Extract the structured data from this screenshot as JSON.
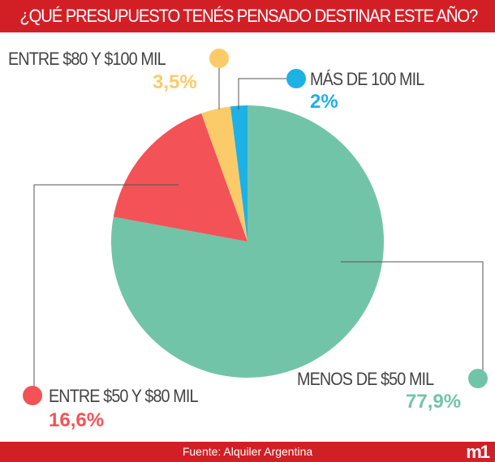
{
  "header": {
    "title": "¿QUÉ PRESUPUESTO TENÉS PENSADO DESTINAR ESTE AÑO?"
  },
  "footer": {
    "source": "Fuente: Alquiler Argentina",
    "logo": "m1"
  },
  "chart_data": {
    "type": "pie",
    "title": "¿QUÉ PRESUPUESTO TENÉS PENSADO DESTINAR ESTE AÑO?",
    "start": "12 o'clock, clockwise",
    "slices": [
      {
        "label": "MENOS DE $50 MIL",
        "value": 77.9,
        "display": "77,9%",
        "color": "#72c4a8"
      },
      {
        "label": "ENTRE $50 Y $80 MIL",
        "value": 16.6,
        "display": "16,6%",
        "color": "#f35257"
      },
      {
        "label": "ENTRE $80 Y $100 MIL",
        "value": 3.5,
        "display": "3,5%",
        "color": "#fccb69"
      },
      {
        "label": "MÁS DE 100 MIL",
        "value": 2,
        "display": "2%",
        "color": "#1db1e6"
      }
    ]
  }
}
